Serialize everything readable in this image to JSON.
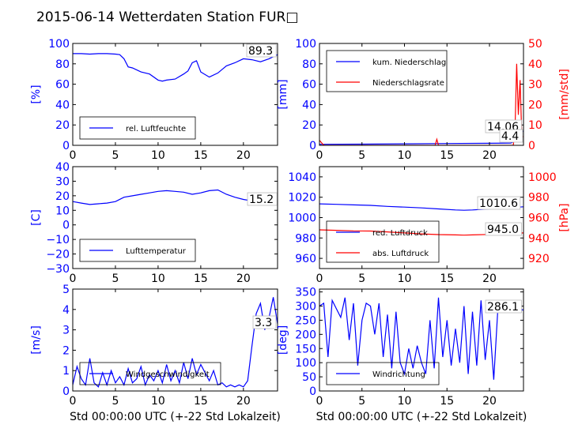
{
  "title": "2015-06-14 Wetterdaten Station FUR□",
  "colors": {
    "left": "#0000ff",
    "right": "#ff0000",
    "frame": "#000000"
  },
  "chart_data": [
    {
      "type": "line",
      "ylabel": "[%]",
      "xlim": [
        0,
        24
      ],
      "ylim": [
        0,
        100
      ],
      "xticks": [
        "0",
        "5",
        "10",
        "15",
        "20"
      ],
      "yticks": [
        "0",
        "20",
        "40",
        "60",
        "80",
        "100"
      ],
      "legend": "lower-left",
      "value_label": "89.3",
      "series": [
        {
          "name": "rel. Luftfeuchte",
          "axis": "left",
          "color": "#0000ff",
          "x": [
            0,
            1,
            2,
            3,
            4,
            5,
            5.5,
            6,
            6.5,
            7,
            8,
            9,
            10,
            10.5,
            11,
            12,
            13,
            13.5,
            14,
            14.5,
            15,
            16,
            17,
            18,
            19,
            20,
            21,
            22,
            23,
            24
          ],
          "y": [
            90,
            90,
            89.5,
            90,
            90,
            89.5,
            89,
            85,
            77,
            76,
            72,
            70,
            64,
            63,
            64,
            65,
            70,
            73,
            81,
            83,
            72,
            67,
            71,
            78,
            81,
            85,
            84,
            82,
            85,
            89
          ]
        }
      ]
    },
    {
      "type": "line",
      "ylabel": "[mm]",
      "ylabel_right": "[mm/std]",
      "xlim": [
        0,
        24
      ],
      "ylim": [
        0,
        100
      ],
      "ylim_right": [
        0,
        50
      ],
      "xticks": [
        "0",
        "5",
        "10",
        "15",
        "20"
      ],
      "yticks": [
        "0",
        "20",
        "40",
        "60",
        "80",
        "100"
      ],
      "yticks_right": [
        "0",
        "10",
        "20",
        "30",
        "40",
        "50"
      ],
      "legend": "top-left",
      "value_label": "14.06",
      "value_label_right": "4.4",
      "series": [
        {
          "name": "kum. Niederschlag",
          "axis": "left",
          "color": "#0000ff",
          "x": [
            0,
            5,
            10,
            15,
            20,
            22.5,
            23,
            23.3,
            23.6,
            24
          ],
          "y": [
            1,
            1.2,
            1.5,
            1.8,
            2,
            2.2,
            4,
            9,
            12,
            14.06
          ]
        },
        {
          "name": "Niederschlagsrate",
          "axis": "right",
          "color": "#ff0000",
          "x": [
            0,
            0.2,
            0.4,
            0.6,
            1,
            5,
            10,
            13.6,
            13.8,
            14,
            14.2,
            15,
            20,
            22.8,
            23,
            23.2,
            23.4,
            23.6,
            23.8,
            24
          ],
          "y": [
            2.5,
            1.5,
            0.5,
            0,
            0,
            0,
            0,
            0,
            3,
            0,
            0,
            0,
            0,
            0,
            8,
            40,
            15,
            32,
            4,
            4.4
          ]
        }
      ]
    },
    {
      "type": "line",
      "ylabel": "[C]",
      "xlim": [
        0,
        24
      ],
      "ylim": [
        -30,
        40
      ],
      "xticks": [
        "0",
        "5",
        "10",
        "15",
        "20"
      ],
      "yticks": [
        "−30",
        "−20",
        "−10",
        "0",
        "10",
        "20",
        "30",
        "40"
      ],
      "legend": "lower-left",
      "value_label": "15.2",
      "series": [
        {
          "name": "Lufttemperatur",
          "axis": "left",
          "color": "#0000ff",
          "x": [
            0,
            1,
            2,
            3,
            4,
            5,
            6,
            7,
            8,
            9,
            10,
            11,
            12,
            13,
            14,
            15,
            16,
            17,
            18,
            19,
            20,
            21,
            22,
            23,
            24
          ],
          "y": [
            16,
            15,
            14,
            14.5,
            15,
            16,
            19,
            20,
            21,
            22,
            23,
            23.5,
            23,
            22.5,
            21,
            22,
            23.5,
            24,
            21,
            19,
            17.5,
            16.5,
            16,
            15.5,
            15.2
          ]
        }
      ]
    },
    {
      "type": "line",
      "ylabel_right": "[hPa]",
      "xlim": [
        0,
        24
      ],
      "ylim": [
        950,
        1050
      ],
      "ylim_right": [
        910,
        1010
      ],
      "xticks": [
        "0",
        "5",
        "10",
        "15",
        "20"
      ],
      "yticks": [
        "960",
        "980",
        "1000",
        "1020",
        "1040"
      ],
      "yticks_right": [
        "920",
        "940",
        "960",
        "980",
        "1000"
      ],
      "legend": "lower-left",
      "value_label": "1010.6",
      "value_label_right": "945.0",
      "series": [
        {
          "name": "red. Luftdruck",
          "axis": "left",
          "color": "#0000ff",
          "x": [
            0,
            2,
            4,
            6,
            8,
            10,
            12,
            14,
            16,
            17,
            18,
            20,
            22,
            24
          ],
          "y": [
            1013.5,
            1013,
            1012.5,
            1012,
            1011,
            1010.3,
            1009.5,
            1008.5,
            1007.5,
            1007.2,
            1007.5,
            1008.5,
            1009.5,
            1010.6
          ]
        },
        {
          "name": "abs. Luftdruck",
          "axis": "right",
          "color": "#ff0000",
          "x": [
            0,
            2,
            4,
            6,
            8,
            10,
            12,
            14,
            16,
            17,
            18,
            20,
            22,
            24
          ],
          "y": [
            948,
            947.5,
            947,
            946.8,
            946,
            945,
            944,
            943.3,
            943,
            942.8,
            943,
            943.5,
            944.2,
            945.0
          ]
        }
      ]
    },
    {
      "type": "line",
      "ylabel": "[m/s]",
      "xlabel": "Std 00:00:00 UTC (+-22 Std Lokalzeit)",
      "xlim": [
        0,
        24
      ],
      "ylim": [
        0,
        5
      ],
      "xticks": [
        "0",
        "5",
        "10",
        "15",
        "20"
      ],
      "yticks": [
        "0",
        "1",
        "2",
        "3",
        "4",
        "5"
      ],
      "legend": "lower-left",
      "value_label": "3.3",
      "series": [
        {
          "name": "Windgeschwindigkeit",
          "axis": "left",
          "color": "#0000ff",
          "x": [
            0,
            0.5,
            1,
            1.5,
            2,
            2.5,
            3,
            3.5,
            4,
            4.5,
            5,
            5.5,
            6,
            6.5,
            7,
            7.5,
            8,
            8.5,
            9,
            9.5,
            10,
            10.5,
            11,
            11.5,
            12,
            12.5,
            13,
            13.5,
            14,
            14.5,
            15,
            15.5,
            16,
            16.5,
            17,
            17.5,
            18,
            18.5,
            19,
            19.5,
            20,
            20.5,
            21,
            21.5,
            22,
            22.5,
            23,
            23.5,
            24
          ],
          "y": [
            0.3,
            1.2,
            0.6,
            0.3,
            1.6,
            0.4,
            0.2,
            0.9,
            0.3,
            1.0,
            0.4,
            0.7,
            0.3,
            1.1,
            0.4,
            0.6,
            1.2,
            0.3,
            0.8,
            0.5,
            1.0,
            0.4,
            1.3,
            0.5,
            1.0,
            0.4,
            1.4,
            0.6,
            1.6,
            0.8,
            1.3,
            0.9,
            0.5,
            1.0,
            0.3,
            0.4,
            0.2,
            0.3,
            0.2,
            0.3,
            0.2,
            0.5,
            2.2,
            3.8,
            4.3,
            3.0,
            3.6,
            4.6,
            3.3
          ]
        }
      ]
    },
    {
      "type": "line",
      "ylabel": "[deg]",
      "xlabel": "Std 00:00:00 UTC (+-22 Std Lokalzeit)",
      "xlim": [
        0,
        24
      ],
      "ylim": [
        0,
        360
      ],
      "xticks": [
        "0",
        "5",
        "10",
        "15",
        "20"
      ],
      "yticks": [
        "0",
        "50",
        "100",
        "150",
        "200",
        "250",
        "300",
        "350"
      ],
      "legend": "lower-left",
      "value_label": "286.1",
      "series": [
        {
          "name": "Windrichtung",
          "axis": "left",
          "color": "#0000ff",
          "x": [
            0,
            0.5,
            1,
            1.5,
            2,
            2.5,
            3,
            3.5,
            4,
            4.5,
            5,
            5.5,
            6,
            6.5,
            7,
            7.5,
            8,
            8.5,
            9,
            9.5,
            10,
            10.5,
            11,
            11.5,
            12,
            12.5,
            13,
            13.5,
            14,
            14.5,
            15,
            15.5,
            16,
            16.5,
            17,
            17.5,
            18,
            18.5,
            19,
            19.5,
            20,
            20.5,
            21,
            21.5,
            22,
            22.5,
            23,
            23.5,
            24
          ],
          "y": [
            300,
            310,
            120,
            320,
            290,
            260,
            330,
            180,
            310,
            90,
            250,
            310,
            300,
            200,
            310,
            120,
            270,
            80,
            280,
            100,
            60,
            150,
            80,
            160,
            100,
            60,
            250,
            80,
            330,
            120,
            250,
            90,
            220,
            100,
            300,
            60,
            280,
            90,
            320,
            110,
            250,
            40,
            300,
            290,
            285,
            290,
            280,
            288,
            286
          ]
        }
      ]
    }
  ]
}
